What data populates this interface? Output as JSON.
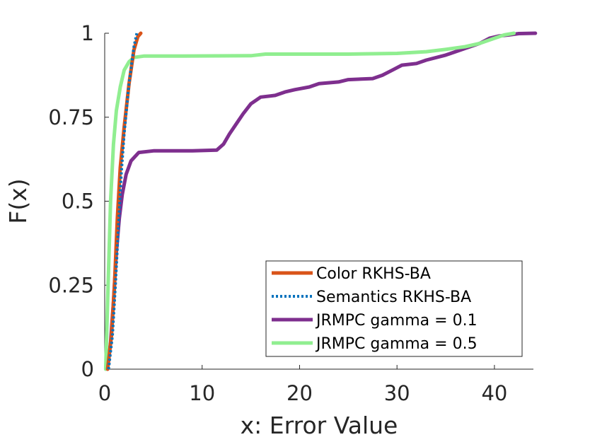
{
  "chart_data": {
    "type": "line",
    "title": "",
    "xlabel": "x: Error Value",
    "ylabel": "F(x)",
    "xlim": [
      0,
      44
    ],
    "ylim": [
      0,
      1
    ],
    "x_ticks": [
      0,
      10,
      20,
      30,
      40
    ],
    "x_tick_labels": [
      "0",
      "10",
      "20",
      "30",
      "40"
    ],
    "y_ticks": [
      0,
      0.25,
      0.5,
      0.75,
      1
    ],
    "y_tick_labels": [
      "0",
      "0.25",
      "0.5",
      "0.75",
      "1"
    ],
    "grid": false,
    "legend_position": "bottom-right",
    "series": [
      {
        "name": "Color RKHS-BA",
        "color": "#D95319",
        "dash": "solid",
        "points": [
          [
            0.3,
            0
          ],
          [
            0.7,
            0.1
          ],
          [
            1.0,
            0.25
          ],
          [
            1.3,
            0.45
          ],
          [
            1.6,
            0.6
          ],
          [
            2.0,
            0.72
          ],
          [
            2.5,
            0.85
          ],
          [
            3.0,
            0.95
          ],
          [
            3.4,
            0.99
          ],
          [
            3.7,
            1.0
          ]
        ]
      },
      {
        "name": "Semantics RKHS-BA",
        "color": "#0072BD",
        "dash": "dotted",
        "points": [
          [
            0.4,
            0
          ],
          [
            0.8,
            0.1
          ],
          [
            1.1,
            0.25
          ],
          [
            1.4,
            0.42
          ],
          [
            1.7,
            0.58
          ],
          [
            2.0,
            0.7
          ],
          [
            2.5,
            0.85
          ],
          [
            3.0,
            0.96
          ],
          [
            3.3,
            1.0
          ]
        ]
      },
      {
        "name": "JRMPC gamma = 0.1",
        "color": "#7E2F8E",
        "dash": "solid",
        "points": [
          [
            0.3,
            0
          ],
          [
            0.6,
            0.08
          ],
          [
            0.9,
            0.2
          ],
          [
            1.2,
            0.35
          ],
          [
            1.5,
            0.45
          ],
          [
            1.8,
            0.52
          ],
          [
            2.2,
            0.58
          ],
          [
            2.7,
            0.62
          ],
          [
            3.5,
            0.645
          ],
          [
            5,
            0.65
          ],
          [
            9,
            0.65
          ],
          [
            11.5,
            0.652
          ],
          [
            12.2,
            0.67
          ],
          [
            12.8,
            0.7
          ],
          [
            13.5,
            0.73
          ],
          [
            14.2,
            0.76
          ],
          [
            15.0,
            0.79
          ],
          [
            16.0,
            0.81
          ],
          [
            17.5,
            0.815
          ],
          [
            18.5,
            0.825
          ],
          [
            19.5,
            0.832
          ],
          [
            21.0,
            0.84
          ],
          [
            22.0,
            0.85
          ],
          [
            24.0,
            0.855
          ],
          [
            25.0,
            0.862
          ],
          [
            27.5,
            0.865
          ],
          [
            28.5,
            0.875
          ],
          [
            29.5,
            0.89
          ],
          [
            30.5,
            0.905
          ],
          [
            32.0,
            0.91
          ],
          [
            33.0,
            0.92
          ],
          [
            35.0,
            0.935
          ],
          [
            37.0,
            0.955
          ],
          [
            38.5,
            0.97
          ],
          [
            39.5,
            0.985
          ],
          [
            40.5,
            0.992
          ],
          [
            41.5,
            0.995
          ],
          [
            42.5,
            0.999
          ],
          [
            44.2,
            1.0
          ]
        ]
      },
      {
        "name": "JRMPC gamma = 0.5",
        "color": "#90EE90",
        "dash": "solid",
        "points": [
          [
            0.1,
            0
          ],
          [
            0.3,
            0.2
          ],
          [
            0.6,
            0.5
          ],
          [
            0.9,
            0.67
          ],
          [
            1.2,
            0.77
          ],
          [
            1.6,
            0.84
          ],
          [
            2.0,
            0.89
          ],
          [
            2.5,
            0.915
          ],
          [
            3.0,
            0.928
          ],
          [
            4,
            0.932
          ],
          [
            8,
            0.932
          ],
          [
            15,
            0.933
          ],
          [
            16.5,
            0.938
          ],
          [
            20,
            0.938
          ],
          [
            25,
            0.938
          ],
          [
            30,
            0.94
          ],
          [
            33,
            0.945
          ],
          [
            35,
            0.952
          ],
          [
            37,
            0.96
          ],
          [
            38.5,
            0.97
          ],
          [
            40,
            0.985
          ],
          [
            41,
            0.995
          ],
          [
            42,
            1.0
          ]
        ]
      }
    ]
  }
}
